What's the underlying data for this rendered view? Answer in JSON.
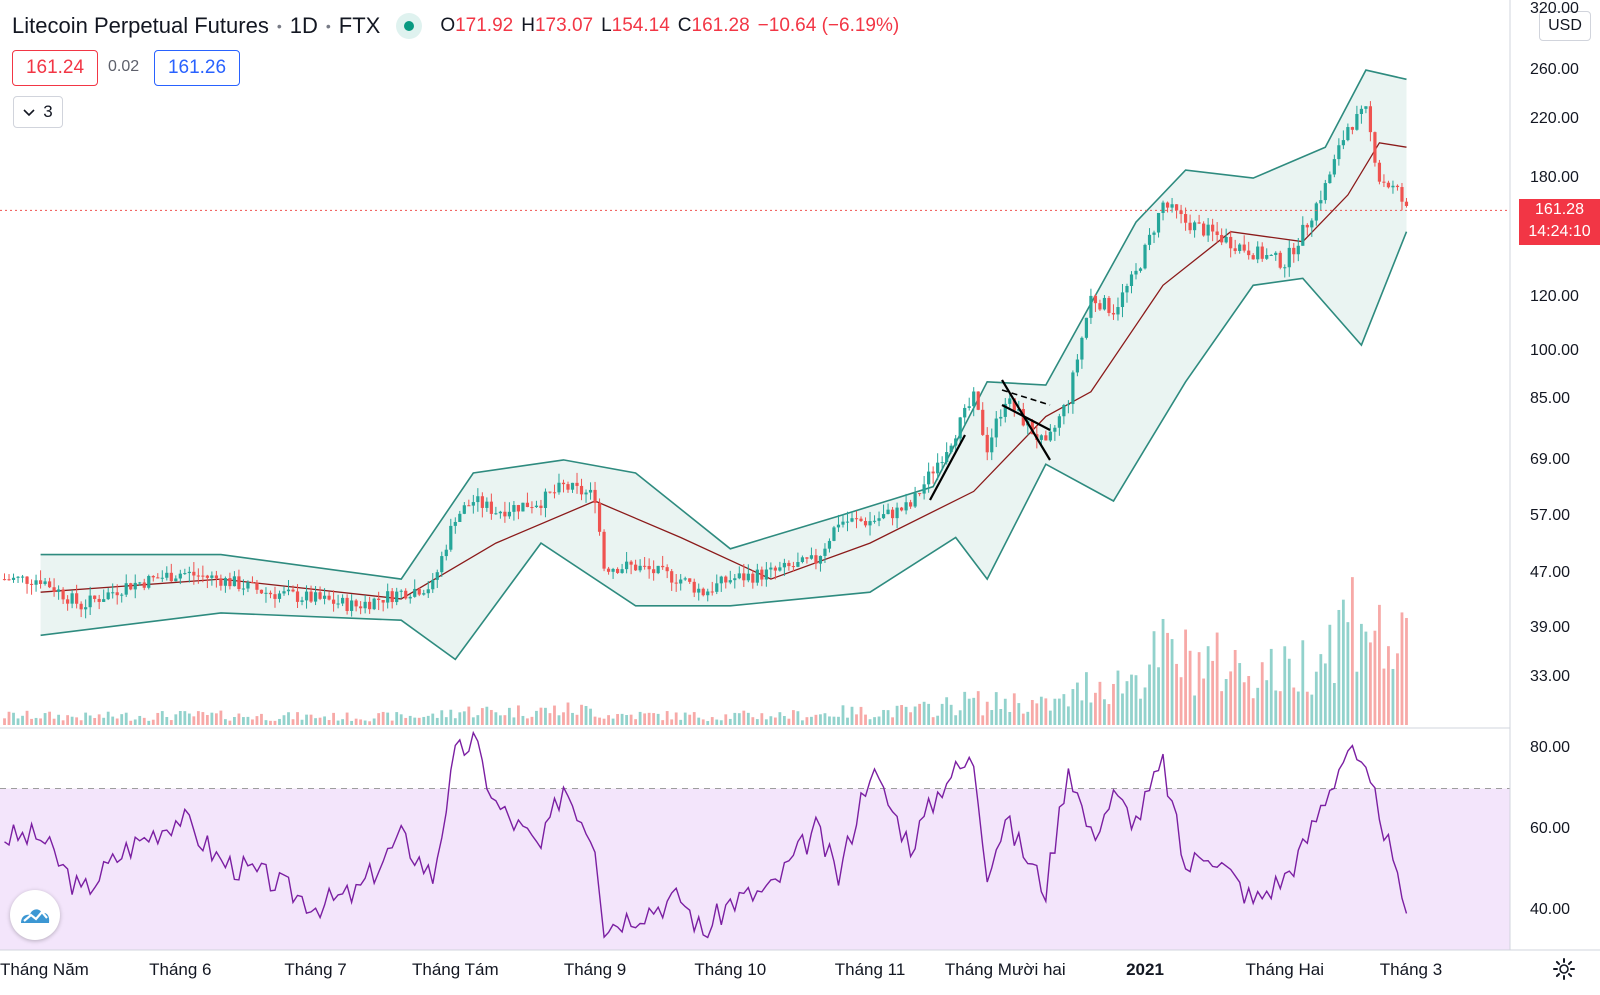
{
  "header": {
    "symbol": "Litecoin Perpetual Futures",
    "interval": "1D",
    "exchange": "FTX",
    "ohlc": {
      "o_label": "O",
      "o": "171.92",
      "h_label": "H",
      "h": "173.07",
      "l_label": "L",
      "l": "154.14",
      "c_label": "C",
      "c": "161.28",
      "change": "−10.64 (−6.19%)"
    },
    "sell_price": "161.24",
    "spread": "0.02",
    "buy_price": "161.26",
    "indicators_count": "3"
  },
  "price_axis": {
    "currency": "USD",
    "last_price": "161.28",
    "countdown": "14:24:10"
  },
  "colors": {
    "up": "#26a69a",
    "down": "#ef5350",
    "bands": "#2e8b7f",
    "band_fill": "#eaf4f2",
    "basis": "#8b1a1a",
    "rsi": "#7b1fa2",
    "rsi_fill": "#f3e5fb"
  },
  "chart_data": [
    {
      "type": "candlestick",
      "title": "Litecoin Perpetual Futures, 1D, FTX",
      "y_scale": "log",
      "ylim": [
        28,
        330
      ],
      "y_ticks": [
        "320.00",
        "260.00",
        "220.00",
        "180.00",
        "120.00",
        "100.00",
        "85.00",
        "69.00",
        "57.00",
        "47.00",
        "39.00",
        "33.00"
      ],
      "x_ticks": [
        "Tháng Năm",
        "Tháng 6",
        "Tháng 7",
        "Tháng Tám",
        "Tháng 9",
        "Tháng 10",
        "Tháng 11",
        "Tháng Mười hai",
        "2021",
        "Tháng Hai",
        "Tháng 3"
      ],
      "close_series": [
        {
          "x": "2020-05-01",
          "close": 46
        },
        {
          "x": "2020-05-10",
          "close": 42
        },
        {
          "x": "2020-05-20",
          "close": 45
        },
        {
          "x": "2020-06-01",
          "close": 47
        },
        {
          "x": "2020-06-10",
          "close": 46
        },
        {
          "x": "2020-06-20",
          "close": 44
        },
        {
          "x": "2020-07-01",
          "close": 43
        },
        {
          "x": "2020-07-10",
          "close": 42
        },
        {
          "x": "2020-07-20",
          "close": 44
        },
        {
          "x": "2020-07-27",
          "close": 45
        },
        {
          "x": "2020-08-01",
          "close": 57
        },
        {
          "x": "2020-08-05",
          "close": 60
        },
        {
          "x": "2020-08-10",
          "close": 58
        },
        {
          "x": "2020-08-20",
          "close": 60
        },
        {
          "x": "2020-08-25",
          "close": 63
        },
        {
          "x": "2020-09-01",
          "close": 61
        },
        {
          "x": "2020-09-03",
          "close": 48
        },
        {
          "x": "2020-09-10",
          "close": 48
        },
        {
          "x": "2020-09-20",
          "close": 46
        },
        {
          "x": "2020-09-25",
          "close": 44
        },
        {
          "x": "2020-10-01",
          "close": 46
        },
        {
          "x": "2020-10-10",
          "close": 47
        },
        {
          "x": "2020-10-20",
          "close": 49
        },
        {
          "x": "2020-10-25",
          "close": 56
        },
        {
          "x": "2020-11-01",
          "close": 56
        },
        {
          "x": "2020-11-10",
          "close": 59
        },
        {
          "x": "2020-11-18",
          "close": 72
        },
        {
          "x": "2020-11-24",
          "close": 85
        },
        {
          "x": "2020-11-27",
          "close": 72
        },
        {
          "x": "2020-12-01",
          "close": 85
        },
        {
          "x": "2020-12-10",
          "close": 72
        },
        {
          "x": "2020-12-15",
          "close": 85
        },
        {
          "x": "2020-12-20",
          "close": 120
        },
        {
          "x": "2020-12-25",
          "close": 115
        },
        {
          "x": "2020-12-30",
          "close": 130
        },
        {
          "x": "2021-01-05",
          "close": 165
        },
        {
          "x": "2021-01-10",
          "close": 155
        },
        {
          "x": "2021-01-15",
          "close": 150
        },
        {
          "x": "2021-01-25",
          "close": 140
        },
        {
          "x": "2021-02-01",
          "close": 135
        },
        {
          "x": "2021-02-05",
          "close": 150
        },
        {
          "x": "2021-02-10",
          "close": 175
        },
        {
          "x": "2021-02-15",
          "close": 215
        },
        {
          "x": "2021-02-19",
          "close": 225
        },
        {
          "x": "2021-02-22",
          "close": 180
        },
        {
          "x": "2021-02-26",
          "close": 172
        },
        {
          "x": "2021-02-28",
          "close": 161.28
        }
      ],
      "bollinger_bands": {
        "upper": [
          {
            "x": "2020-05-01",
            "y": 50
          },
          {
            "x": "2020-06-10",
            "y": 50
          },
          {
            "x": "2020-07-20",
            "y": 46
          },
          {
            "x": "2020-08-05",
            "y": 66
          },
          {
            "x": "2020-08-25",
            "y": 69
          },
          {
            "x": "2020-09-10",
            "y": 66
          },
          {
            "x": "2020-10-01",
            "y": 51
          },
          {
            "x": "2020-10-25",
            "y": 57
          },
          {
            "x": "2020-11-15",
            "y": 63
          },
          {
            "x": "2020-11-27",
            "y": 90
          },
          {
            "x": "2020-12-10",
            "y": 89
          },
          {
            "x": "2020-12-30",
            "y": 155
          },
          {
            "x": "2021-01-10",
            "y": 185
          },
          {
            "x": "2021-01-25",
            "y": 180
          },
          {
            "x": "2021-02-10",
            "y": 200
          },
          {
            "x": "2021-02-19",
            "y": 260
          },
          {
            "x": "2021-02-28",
            "y": 252
          }
        ],
        "basis": [
          {
            "x": "2020-05-01",
            "y": 44
          },
          {
            "x": "2020-06-10",
            "y": 46
          },
          {
            "x": "2020-07-20",
            "y": 43
          },
          {
            "x": "2020-08-10",
            "y": 52
          },
          {
            "x": "2020-09-01",
            "y": 60
          },
          {
            "x": "2020-09-20",
            "y": 53
          },
          {
            "x": "2020-10-10",
            "y": 46
          },
          {
            "x": "2020-11-01",
            "y": 52
          },
          {
            "x": "2020-11-24",
            "y": 62
          },
          {
            "x": "2020-12-10",
            "y": 80
          },
          {
            "x": "2020-12-20",
            "y": 87
          },
          {
            "x": "2021-01-05",
            "y": 125
          },
          {
            "x": "2021-01-20",
            "y": 150
          },
          {
            "x": "2021-02-05",
            "y": 145
          },
          {
            "x": "2021-02-15",
            "y": 170
          },
          {
            "x": "2021-02-22",
            "y": 203
          },
          {
            "x": "2021-02-28",
            "y": 200
          }
        ],
        "lower": [
          {
            "x": "2020-05-01",
            "y": 38
          },
          {
            "x": "2020-06-10",
            "y": 41
          },
          {
            "x": "2020-07-20",
            "y": 40
          },
          {
            "x": "2020-08-01",
            "y": 35
          },
          {
            "x": "2020-08-20",
            "y": 52
          },
          {
            "x": "2020-09-10",
            "y": 42
          },
          {
            "x": "2020-10-01",
            "y": 42
          },
          {
            "x": "2020-11-01",
            "y": 44
          },
          {
            "x": "2020-11-20",
            "y": 53
          },
          {
            "x": "2020-11-27",
            "y": 46
          },
          {
            "x": "2020-12-10",
            "y": 68
          },
          {
            "x": "2020-12-25",
            "y": 60
          },
          {
            "x": "2021-01-10",
            "y": 90
          },
          {
            "x": "2021-01-25",
            "y": 125
          },
          {
            "x": "2021-02-05",
            "y": 128
          },
          {
            "x": "2021-02-18",
            "y": 102
          },
          {
            "x": "2021-02-28",
            "y": 150
          }
        ]
      },
      "last_price": 161.28
    },
    {
      "type": "line",
      "title": "RSI",
      "ylim": [
        30,
        85
      ],
      "y_ticks": [
        "80.00",
        "60.00",
        "40.00"
      ],
      "band": [
        30,
        70
      ],
      "points": [
        {
          "x": "2020-05-01",
          "y": 58
        },
        {
          "x": "2020-05-10",
          "y": 44
        },
        {
          "x": "2020-05-20",
          "y": 55
        },
        {
          "x": "2020-06-01",
          "y": 63
        },
        {
          "x": "2020-06-10",
          "y": 52
        },
        {
          "x": "2020-06-20",
          "y": 48
        },
        {
          "x": "2020-07-01",
          "y": 41
        },
        {
          "x": "2020-07-10",
          "y": 44
        },
        {
          "x": "2020-07-20",
          "y": 58
        },
        {
          "x": "2020-07-27",
          "y": 48
        },
        {
          "x": "2020-08-01",
          "y": 78
        },
        {
          "x": "2020-08-05",
          "y": 82
        },
        {
          "x": "2020-08-10",
          "y": 66
        },
        {
          "x": "2020-08-20",
          "y": 55
        },
        {
          "x": "2020-08-25",
          "y": 71
        },
        {
          "x": "2020-09-01",
          "y": 57
        },
        {
          "x": "2020-09-03",
          "y": 36
        },
        {
          "x": "2020-09-10",
          "y": 39
        },
        {
          "x": "2020-09-20",
          "y": 43
        },
        {
          "x": "2020-09-25",
          "y": 34
        },
        {
          "x": "2020-10-01",
          "y": 42
        },
        {
          "x": "2020-10-10",
          "y": 45
        },
        {
          "x": "2020-10-20",
          "y": 60
        },
        {
          "x": "2020-10-25",
          "y": 48
        },
        {
          "x": "2020-11-01",
          "y": 75
        },
        {
          "x": "2020-11-10",
          "y": 56
        },
        {
          "x": "2020-11-18",
          "y": 73
        },
        {
          "x": "2020-11-24",
          "y": 77
        },
        {
          "x": "2020-11-27",
          "y": 50
        },
        {
          "x": "2020-12-01",
          "y": 62
        },
        {
          "x": "2020-12-10",
          "y": 45
        },
        {
          "x": "2020-12-15",
          "y": 76
        },
        {
          "x": "2020-12-20",
          "y": 58
        },
        {
          "x": "2020-12-25",
          "y": 68
        },
        {
          "x": "2020-12-30",
          "y": 62
        },
        {
          "x": "2021-01-05",
          "y": 76
        },
        {
          "x": "2021-01-10",
          "y": 50
        },
        {
          "x": "2021-01-15",
          "y": 55
        },
        {
          "x": "2021-01-25",
          "y": 42
        },
        {
          "x": "2021-02-01",
          "y": 48
        },
        {
          "x": "2021-02-05",
          "y": 55
        },
        {
          "x": "2021-02-10",
          "y": 68
        },
        {
          "x": "2021-02-15",
          "y": 80
        },
        {
          "x": "2021-02-19",
          "y": 72
        },
        {
          "x": "2021-02-22",
          "y": 65
        },
        {
          "x": "2021-02-26",
          "y": 46
        },
        {
          "x": "2021-02-28",
          "y": 41
        }
      ]
    }
  ]
}
